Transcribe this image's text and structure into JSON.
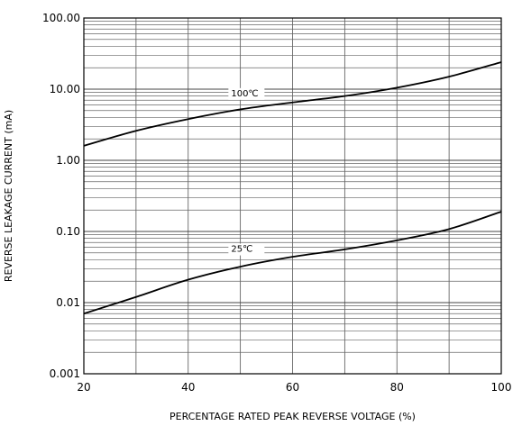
{
  "chart_data": {
    "type": "line",
    "title": "",
    "xlabel": "PERCENTAGE RATED PEAK REVERSE VOLTAGE (%)",
    "ylabel": "REVERSE LEAKAGE CURRENT (mA)",
    "xlim": [
      20,
      100
    ],
    "ylim": [
      0.001,
      100
    ],
    "yscale": "log",
    "grid": true,
    "x_ticks": [
      20,
      40,
      60,
      80,
      100
    ],
    "x_tick_labels": [
      "20",
      "40",
      "60",
      "80",
      "100"
    ],
    "y_ticks": [
      0.001,
      0.01,
      0.1,
      1,
      10,
      100
    ],
    "y_tick_labels": [
      "0.001",
      "0.01",
      "0.10",
      "1.00",
      "10.00",
      "100.00"
    ],
    "series": [
      {
        "name": "100℃",
        "color": "#000000",
        "points": [
          [
            20,
            1.6
          ],
          [
            30,
            2.6
          ],
          [
            40,
            3.8
          ],
          [
            50,
            5.2
          ],
          [
            60,
            6.5
          ],
          [
            70,
            8.0
          ],
          [
            80,
            10.5
          ],
          [
            90,
            15.0
          ],
          [
            100,
            24.0
          ]
        ]
      },
      {
        "name": "25℃",
        "color": "#000000",
        "points": [
          [
            20,
            0.007
          ],
          [
            30,
            0.012
          ],
          [
            40,
            0.021
          ],
          [
            50,
            0.032
          ],
          [
            60,
            0.044
          ],
          [
            70,
            0.056
          ],
          [
            80,
            0.075
          ],
          [
            90,
            0.108
          ],
          [
            100,
            0.19
          ]
        ]
      }
    ]
  }
}
